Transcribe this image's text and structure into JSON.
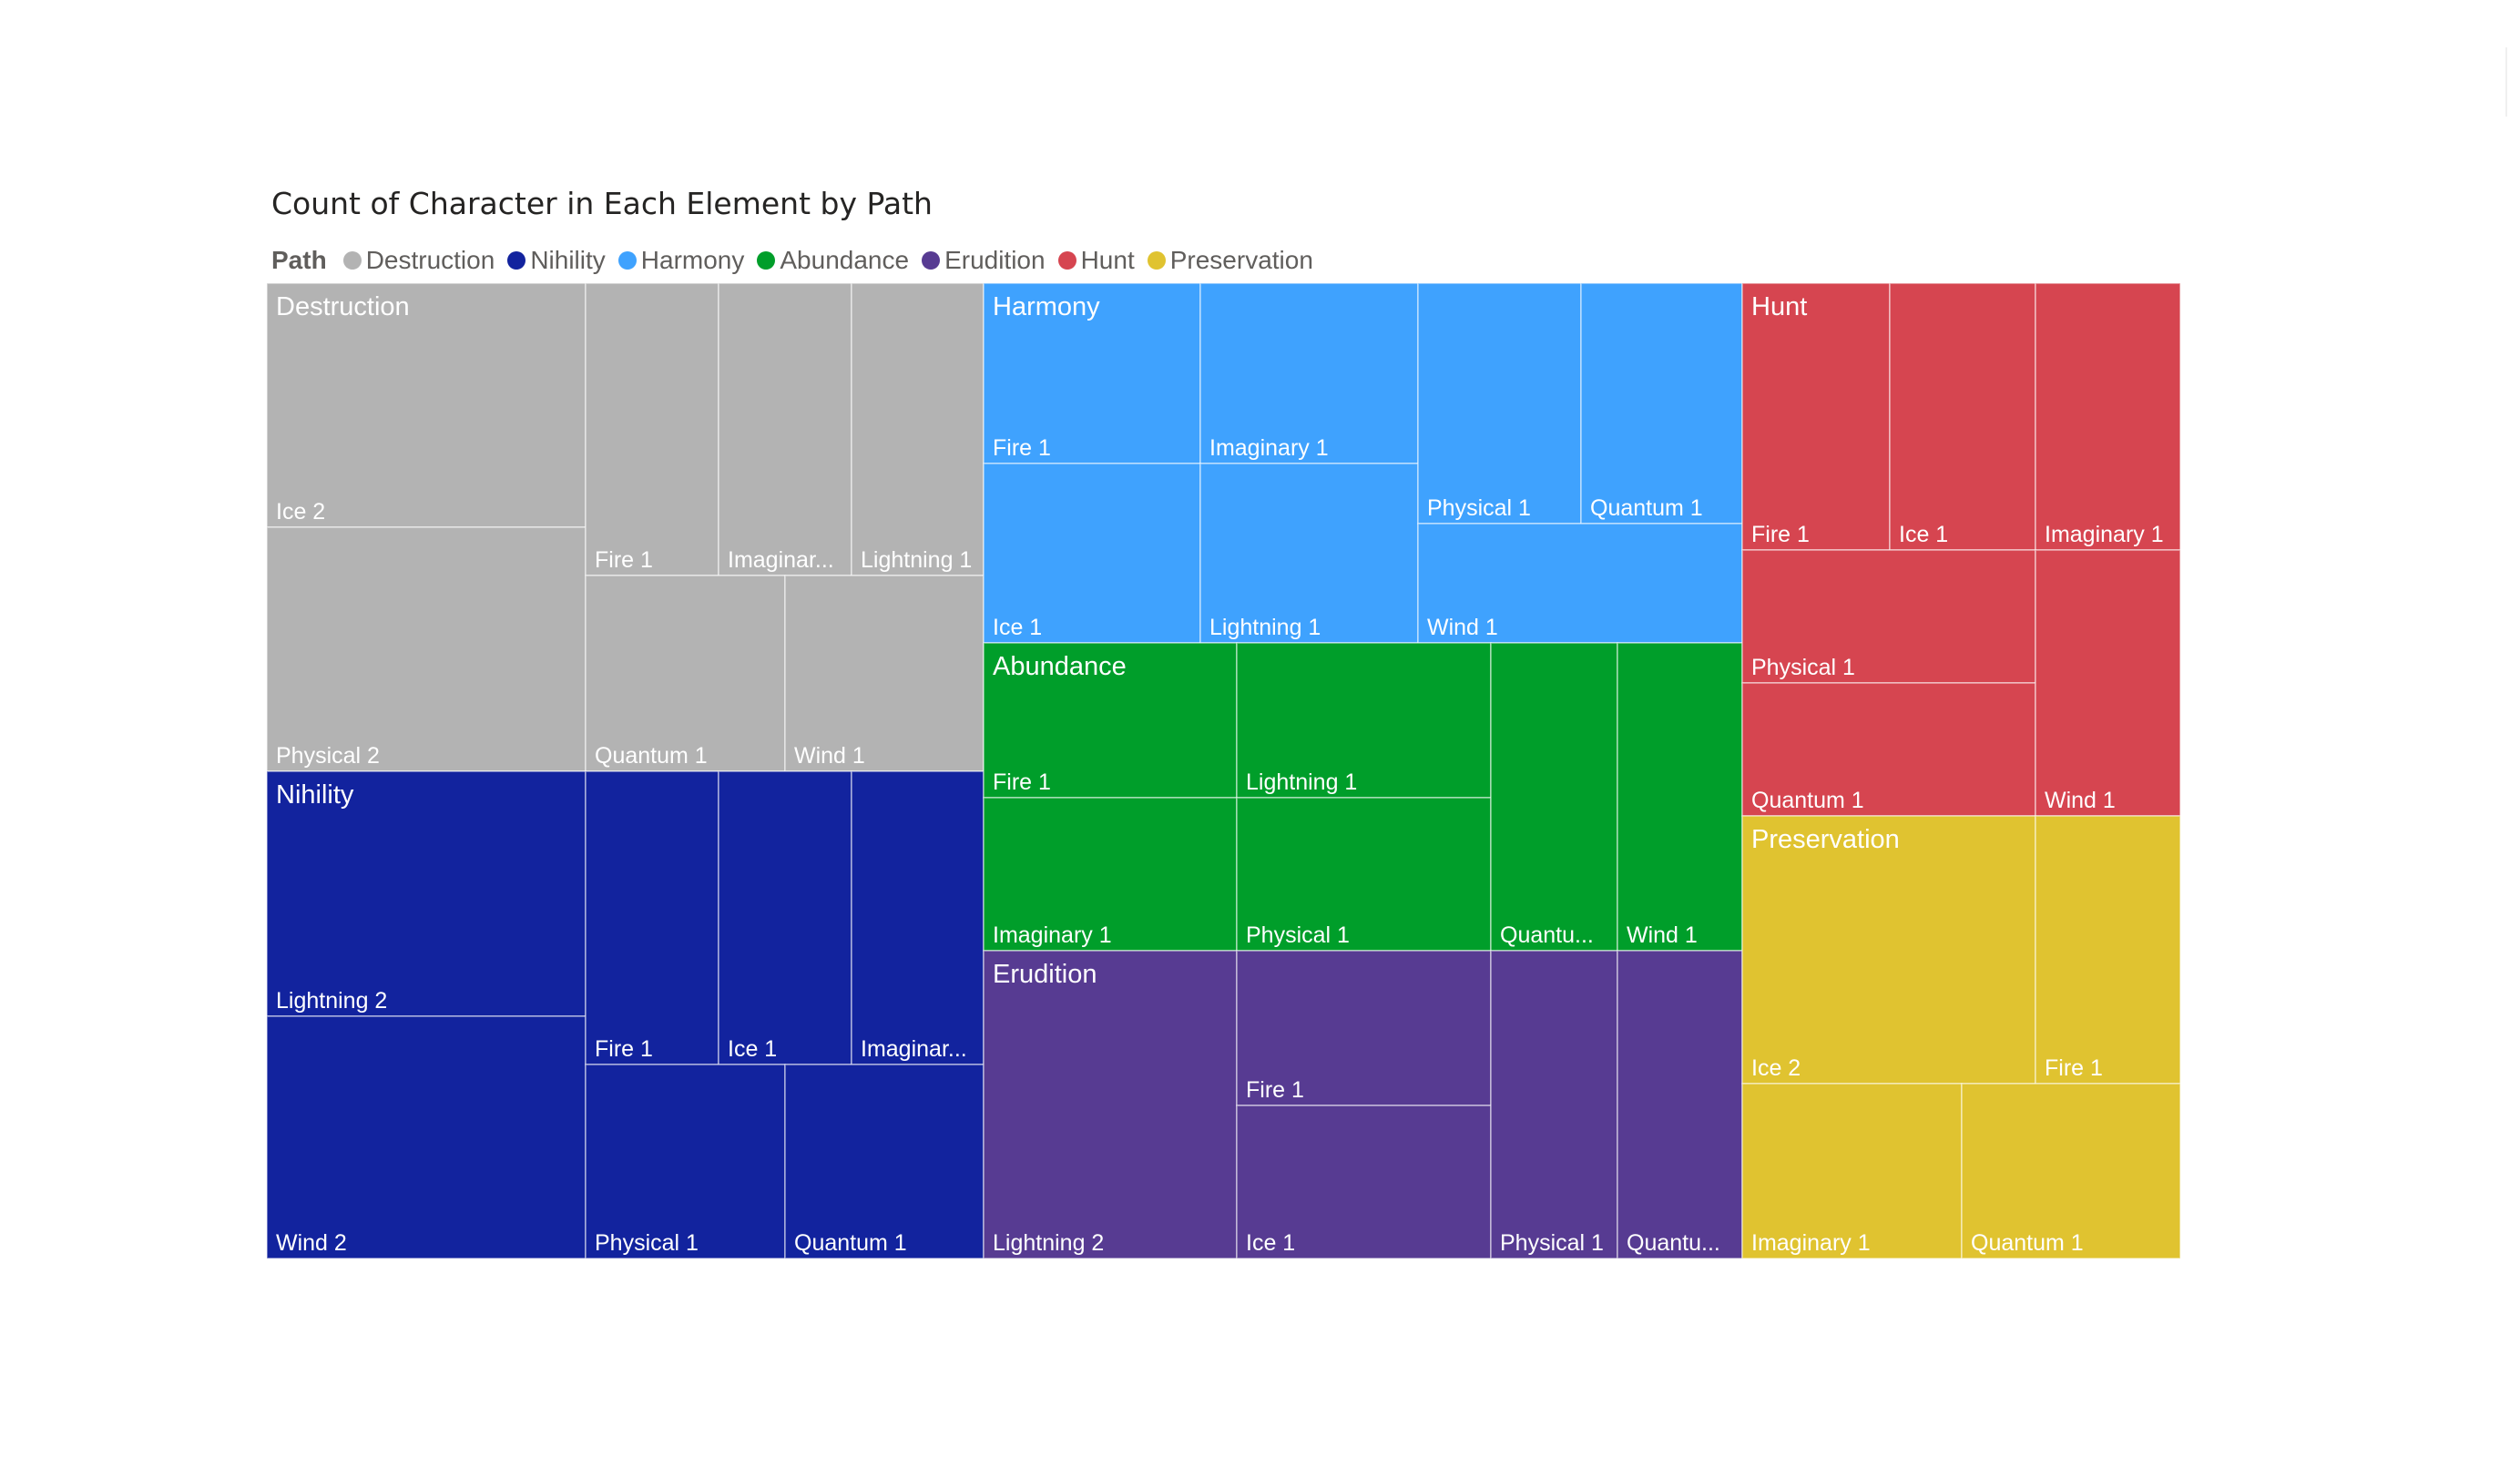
{
  "chart_data": {
    "type": "treemap",
    "title": "Count of Character in Each Element by Path",
    "legend_title": "Path",
    "legend_position": "top-left",
    "groups": [
      {
        "name": "Destruction",
        "color": "#b3b3b3",
        "children": [
          {
            "name": "Ice",
            "value": 2,
            "label": "Ice 2"
          },
          {
            "name": "Physical",
            "value": 2,
            "label": "Physical 2"
          },
          {
            "name": "Fire",
            "value": 1,
            "label": "Fire 1"
          },
          {
            "name": "Imaginary",
            "value": 1,
            "label": "Imaginar..."
          },
          {
            "name": "Lightning",
            "value": 1,
            "label": "Lightning 1"
          },
          {
            "name": "Quantum",
            "value": 1,
            "label": "Quantum 1"
          },
          {
            "name": "Wind",
            "value": 1,
            "label": "Wind 1"
          }
        ]
      },
      {
        "name": "Nihility",
        "color": "#12239e",
        "children": [
          {
            "name": "Lightning",
            "value": 2,
            "label": "Lightning 2"
          },
          {
            "name": "Wind",
            "value": 2,
            "label": "Wind 2"
          },
          {
            "name": "Fire",
            "value": 1,
            "label": "Fire 1"
          },
          {
            "name": "Ice",
            "value": 1,
            "label": "Ice 1"
          },
          {
            "name": "Imaginary",
            "value": 1,
            "label": "Imaginar..."
          },
          {
            "name": "Physical",
            "value": 1,
            "label": "Physical 1"
          },
          {
            "name": "Quantum",
            "value": 1,
            "label": "Quantum 1"
          }
        ]
      },
      {
        "name": "Harmony",
        "color": "#3fa2fe",
        "children": [
          {
            "name": "Fire",
            "value": 1,
            "label": "Fire 1"
          },
          {
            "name": "Imaginary",
            "value": 1,
            "label": "Imaginary 1"
          },
          {
            "name": "Ice",
            "value": 1,
            "label": "Ice 1"
          },
          {
            "name": "Lightning",
            "value": 1,
            "label": "Lightning 1"
          },
          {
            "name": "Physical",
            "value": 1,
            "label": "Physical 1"
          },
          {
            "name": "Quantum",
            "value": 1,
            "label": "Quantum 1"
          },
          {
            "name": "Wind",
            "value": 1,
            "label": "Wind 1"
          }
        ]
      },
      {
        "name": "Abundance",
        "color": "#009e2a",
        "children": [
          {
            "name": "Fire",
            "value": 1,
            "label": "Fire 1"
          },
          {
            "name": "Lightning",
            "value": 1,
            "label": "Lightning 1"
          },
          {
            "name": "Imaginary",
            "value": 1,
            "label": "Imaginary 1"
          },
          {
            "name": "Physical",
            "value": 1,
            "label": "Physical 1"
          },
          {
            "name": "Quantum",
            "value": 1,
            "label": "Quantu..."
          },
          {
            "name": "Wind",
            "value": 1,
            "label": "Wind 1"
          }
        ]
      },
      {
        "name": "Erudition",
        "color": "#573b92",
        "children": [
          {
            "name": "Lightning",
            "value": 2,
            "label": "Lightning 2"
          },
          {
            "name": "Fire",
            "value": 1,
            "label": "Fire 1"
          },
          {
            "name": "Ice",
            "value": 1,
            "label": "Ice 1"
          },
          {
            "name": "Physical",
            "value": 1,
            "label": "Physical 1"
          },
          {
            "name": "Quantum",
            "value": 1,
            "label": "Quantu..."
          }
        ]
      },
      {
        "name": "Hunt",
        "color": "#d64550",
        "children": [
          {
            "name": "Fire",
            "value": 1,
            "label": "Fire 1"
          },
          {
            "name": "Ice",
            "value": 1,
            "label": "Ice 1"
          },
          {
            "name": "Imaginary",
            "value": 1,
            "label": "Imaginary 1"
          },
          {
            "name": "Physical",
            "value": 1,
            "label": "Physical 1"
          },
          {
            "name": "Quantum",
            "value": 1,
            "label": "Quantum 1"
          },
          {
            "name": "Wind",
            "value": 1,
            "label": "Wind 1"
          }
        ]
      },
      {
        "name": "Preservation",
        "color": "#e0c330",
        "children": [
          {
            "name": "Ice",
            "value": 2,
            "label": "Ice 2"
          },
          {
            "name": "Fire",
            "value": 1,
            "label": "Fire 1"
          },
          {
            "name": "Imaginary",
            "value": 1,
            "label": "Imaginary 1"
          },
          {
            "name": "Quantum",
            "value": 1,
            "label": "Quantum 1"
          }
        ]
      }
    ]
  }
}
